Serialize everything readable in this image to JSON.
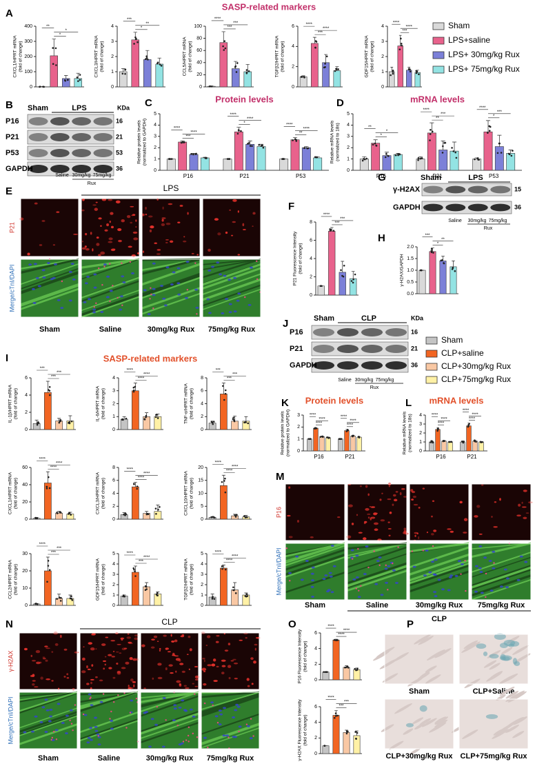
{
  "panel_labels": [
    "A",
    "B",
    "C",
    "D",
    "E",
    "F",
    "G",
    "H",
    "I",
    "J",
    "K",
    "L",
    "M",
    "N",
    "O",
    "P"
  ],
  "section_titles": [
    "SASP-related markers",
    "SASP-related markers"
  ],
  "legends": [
    {
      "items": [
        {
          "name": "Sham",
          "color": "#d9d9d9"
        },
        {
          "name": "LPS+saline",
          "color": "#e8628c"
        },
        {
          "name": "LPS+ 30mg/kg Rux",
          "color": "#7c80d8"
        },
        {
          "name": "LPS+ 75mg/kg Rux",
          "color": "#93e3e3"
        }
      ]
    },
    {
      "items": [
        {
          "name": "Sham",
          "color": "#c4c4c4"
        },
        {
          "name": "CLP+saline",
          "color": "#f26522"
        },
        {
          "name": "CLP+30mg/kg Rux",
          "color": "#f9c8a4"
        },
        {
          "name": "CLP+75mg/kg Rux",
          "color": "#fff1a6"
        }
      ]
    }
  ],
  "chart_data": [
    {
      "type": "bar",
      "ylabel": [
        "CXCL1/HPRT mRNA",
        "(fold of change)"
      ],
      "values": [
        1,
        205,
        55,
        55
      ],
      "errors": [
        1,
        110,
        20,
        35
      ],
      "colors": [
        "#d9d9d9",
        "#e8628c",
        "#7c80d8",
        "#93e3e3"
      ],
      "ylim": [
        0,
        400
      ],
      "yticks": [
        0,
        100,
        200,
        300,
        400
      ],
      "significance": [
        "**",
        "*",
        "*"
      ]
    },
    {
      "type": "bar",
      "ylabel": [
        "CXCL3/HPRT mRNA",
        "(fold of change)"
      ],
      "values": [
        1,
        3.1,
        1.8,
        1.5
      ],
      "errors": [
        0.2,
        0.5,
        0.6,
        0.4
      ],
      "colors": [
        "#d9d9d9",
        "#e8628c",
        "#7c80d8",
        "#93e3e3"
      ],
      "ylim": [
        0,
        4
      ],
      "yticks": [
        0,
        1,
        2,
        3,
        4
      ],
      "significance": [
        "***",
        "*",
        "**"
      ]
    },
    {
      "type": "bar",
      "ylabel": [
        "CCL5/HPRT mRNA",
        "(fold of change)"
      ],
      "values": [
        1,
        73,
        30,
        25
      ],
      "errors": [
        0.5,
        18,
        12,
        12
      ],
      "colors": [
        "#d9d9d9",
        "#e8628c",
        "#7c80d8",
        "#93e3e3"
      ],
      "ylim": [
        0,
        100
      ],
      "yticks": [
        0,
        20,
        40,
        60,
        80,
        100
      ],
      "significance": [
        "****",
        "***",
        "***"
      ]
    },
    {
      "type": "bar",
      "ylabel": [
        "TGFβ2/HPRT mRNA",
        "(fold of change)"
      ],
      "values": [
        1,
        4.3,
        2.4,
        1.6
      ],
      "errors": [
        0.1,
        0.6,
        0.8,
        0.4
      ],
      "colors": [
        "#d9d9d9",
        "#e8628c",
        "#7c80d8",
        "#93e3e3"
      ],
      "ylim": [
        0,
        6
      ],
      "yticks": [
        0,
        2,
        4,
        6
      ],
      "significance": [
        "****",
        "***",
        "****"
      ]
    },
    {
      "type": "bar",
      "ylabel": [
        "GDF15/HPRT mRNA",
        "(fold of change)"
      ],
      "values": [
        1,
        2.7,
        1.1,
        0.95
      ],
      "errors": [
        0.3,
        0.7,
        0.2,
        0.15
      ],
      "colors": [
        "#d9d9d9",
        "#e8628c",
        "#7c80d8",
        "#93e3e3"
      ],
      "ylim": [
        0,
        4
      ],
      "yticks": [
        0,
        1,
        2,
        3,
        4
      ],
      "significance": [
        "****",
        "***",
        "****"
      ]
    },
    {
      "type": "bar",
      "title": "Protein levels",
      "title_color": "#c2306a",
      "ylabel": [
        "Relative protein levels",
        "(normalized to GAPDH)"
      ],
      "categories": [
        "P16",
        "P21",
        "P53"
      ],
      "series": [
        {
          "color": "#d9d9d9",
          "values": [
            1,
            1,
            1
          ],
          "errors": [
            0,
            0,
            0
          ]
        },
        {
          "color": "#e8628c",
          "values": [
            2.5,
            3.4,
            2.7
          ],
          "errors": [
            0.1,
            0.4,
            0.2
          ]
        },
        {
          "color": "#7c80d8",
          "values": [
            1.4,
            2.3,
            2.0
          ],
          "errors": [
            0.1,
            0.3,
            0.1
          ]
        },
        {
          "color": "#93e3e3",
          "values": [
            1.1,
            2.1,
            1.1
          ],
          "errors": [
            0.05,
            0.2,
            0.1
          ]
        }
      ],
      "ylim": [
        0,
        5
      ],
      "yticks": [
        0,
        1,
        2,
        3,
        4,
        5
      ],
      "significance": [
        [
          "****",
          "***",
          "****"
        ],
        [
          "****",
          "*",
          "****"
        ],
        [
          "****",
          "**",
          "****"
        ]
      ]
    },
    {
      "type": "bar",
      "title": "mRNA levels",
      "title_color": "#c2306a",
      "ylabel": [
        "Relative mRNA levels",
        "(normalized to 18s)"
      ],
      "categories": [
        "P16",
        "P21",
        "P53"
      ],
      "series": [
        {
          "color": "#d9d9d9",
          "values": [
            1,
            1,
            1
          ],
          "errors": [
            0.2,
            0.2,
            0.1
          ]
        },
        {
          "color": "#e8628c",
          "values": [
            2.4,
            3.3,
            3.4
          ],
          "errors": [
            0.3,
            0.9,
            1.0
          ]
        },
        {
          "color": "#7c80d8",
          "values": [
            1.3,
            1.8,
            2.1
          ],
          "errors": [
            0.3,
            0.8,
            1.0
          ]
        },
        {
          "color": "#93e3e3",
          "values": [
            1.4,
            1.7,
            1.5
          ],
          "errors": [
            0.1,
            0.8,
            0.3
          ]
        }
      ],
      "ylim": [
        0,
        5
      ],
      "yticks": [
        0,
        1,
        2,
        3,
        4,
        5
      ],
      "significance": [
        [
          "**",
          "*",
          "*"
        ],
        [
          "****",
          "**",
          "***"
        ],
        [
          "****",
          "*",
          "***"
        ]
      ]
    },
    {
      "type": "bar",
      "ylabel": [
        "P21 Fluorescence Intensity",
        "(fold of change)"
      ],
      "values": [
        1,
        7,
        2.5,
        1.8
      ],
      "errors": [
        0,
        0.4,
        1.2,
        0.8
      ],
      "colors": [
        "#d9d9d9",
        "#e8628c",
        "#7c80d8",
        "#93e3e3"
      ],
      "ylim": [
        0,
        8
      ],
      "yticks": [
        0,
        2,
        4,
        6,
        8
      ],
      "significance": [
        "****",
        "***",
        "***"
      ]
    },
    {
      "type": "bar",
      "ylabel": [
        "γ-H2AX/GAPDH"
      ],
      "values": [
        1,
        1.8,
        1.4,
        1.15
      ],
      "errors": [
        0,
        0.15,
        0.2,
        0.25
      ],
      "colors": [
        "#d9d9d9",
        "#e8628c",
        "#7c80d8",
        "#93e3e3"
      ],
      "ylim": [
        0,
        2
      ],
      "yticks": [
        {
          "value": 0,
          "label": "0.0"
        },
        {
          "value": 0.5,
          "label": "0.5"
        },
        {
          "value": 1,
          "label": "1.0"
        },
        {
          "value": 1.5,
          "label": "1.5"
        },
        {
          "value": 2,
          "label": "2.0"
        }
      ],
      "significance": [
        "***",
        "*",
        "**"
      ]
    },
    {
      "type": "bar",
      "ylabel": [
        "IL-1β/HPRT mRNA",
        "(fold of change)"
      ],
      "values": [
        0.7,
        4.3,
        1.0,
        1.0
      ],
      "errors": [
        0.4,
        1.3,
        0.3,
        0.6
      ],
      "colors": [
        "#c4c4c4",
        "#f26522",
        "#f9c8a4",
        "#fff1a6"
      ],
      "ylim": [
        0,
        6
      ],
      "yticks": [
        0,
        2,
        4,
        6
      ],
      "significance": [
        "***",
        "***",
        "***"
      ]
    },
    {
      "type": "bar",
      "ylabel": [
        "IL-6/HPRT mRNA",
        "(fold of change)"
      ],
      "values": [
        0.8,
        3.0,
        1.0,
        1.0
      ],
      "errors": [
        0.2,
        0.6,
        0.3,
        0.2
      ],
      "colors": [
        "#c4c4c4",
        "#f26522",
        "#f9c8a4",
        "#fff1a6"
      ],
      "ylim": [
        0,
        4
      ],
      "yticks": [
        0,
        1,
        2,
        3,
        4
      ],
      "significance": [
        "****",
        "****",
        "****"
      ]
    },
    {
      "type": "bar",
      "ylabel": [
        "TNF-α/HPRT mRNA",
        "(fold of change)"
      ],
      "values": [
        1,
        5.5,
        1.3,
        1.3
      ],
      "errors": [
        0.3,
        1.7,
        0.8,
        0.7
      ],
      "colors": [
        "#c4c4c4",
        "#f26522",
        "#f9c8a4",
        "#fff1a6"
      ],
      "ylim": [
        0,
        8
      ],
      "yticks": [
        0,
        2,
        4,
        6,
        8
      ],
      "significance": [
        "***",
        "***",
        "***"
      ]
    },
    {
      "type": "bar",
      "ylabel": [
        "CXCL1/HPRT mRNA",
        "(fold of change)"
      ],
      "values": [
        1,
        42,
        7,
        6
      ],
      "errors": [
        1,
        13,
        2,
        2
      ],
      "colors": [
        "#c4c4c4",
        "#f26522",
        "#f9c8a4",
        "#fff1a6"
      ],
      "ylim": [
        0,
        60
      ],
      "yticks": [
        0,
        20,
        40,
        60
      ],
      "significance": [
        "****",
        "****",
        "****"
      ]
    },
    {
      "type": "bar",
      "ylabel": [
        "CXCL3/HPRT mRNA",
        "(fold of change)"
      ],
      "values": [
        0.7,
        5.0,
        0.9,
        1.2
      ],
      "errors": [
        0.3,
        0.7,
        0.3,
        1.0
      ],
      "colors": [
        "#c4c4c4",
        "#f26522",
        "#f9c8a4",
        "#fff1a6"
      ],
      "ylim": [
        0,
        8
      ],
      "yticks": [
        0,
        2,
        4,
        6,
        8
      ],
      "significance": [
        "****",
        "****",
        "****"
      ]
    },
    {
      "type": "bar",
      "ylabel": [
        "CXCL10/HPRT mRNA",
        "(fold of change)"
      ],
      "values": [
        0.7,
        13,
        1.3,
        0.9
      ],
      "errors": [
        0.3,
        4,
        0.6,
        0.6
      ],
      "colors": [
        "#c4c4c4",
        "#f26522",
        "#f9c8a4",
        "#fff1a6"
      ],
      "ylim": [
        0,
        20
      ],
      "yticks": [
        0,
        5,
        10,
        15,
        20
      ],
      "significance": [
        "****",
        "****",
        "****"
      ]
    },
    {
      "type": "bar",
      "ylabel": [
        "CCL2/HPRT mRNA",
        "(fold of change)"
      ],
      "values": [
        0.8,
        20,
        4,
        4
      ],
      "errors": [
        0.3,
        8,
        2.5,
        2
      ],
      "colors": [
        "#c4c4c4",
        "#f26522",
        "#f9c8a4",
        "#fff1a6"
      ],
      "ylim": [
        0,
        30
      ],
      "yticks": [
        0,
        10,
        20,
        30
      ],
      "significance": [
        "****",
        "***",
        "***"
      ]
    },
    {
      "type": "bar",
      "ylabel": [
        "GDF15/HPRT mRNA",
        "(fold of change)"
      ],
      "values": [
        0.9,
        3.2,
        1.8,
        1.1
      ],
      "errors": [
        0.1,
        0.6,
        0.4,
        0.2
      ],
      "colors": [
        "#c4c4c4",
        "#f26522",
        "#f9c8a4",
        "#fff1a6"
      ],
      "ylim": [
        0,
        5
      ],
      "yticks": [
        0,
        1,
        2,
        3,
        4,
        5
      ],
      "significance": [
        "****",
        "***",
        "****"
      ]
    },
    {
      "type": "bar",
      "ylabel": [
        "TGFβ2/HPRT mRNA",
        "(fold of change)"
      ],
      "values": [
        0.8,
        3.6,
        1.5,
        1.0
      ],
      "errors": [
        0.3,
        0.3,
        0.7,
        0.2
      ],
      "colors": [
        "#c4c4c4",
        "#f26522",
        "#f9c8a4",
        "#fff1a6"
      ],
      "ylim": [
        0,
        5
      ],
      "yticks": [
        0,
        1,
        2,
        3,
        4,
        5
      ],
      "significance": [
        "****",
        "****",
        "****"
      ]
    },
    {
      "type": "bar",
      "title": "Protein levels",
      "title_color": "#e2502a",
      "ylabel": [
        "Relative protein levels",
        "(normalized to GAPDH)"
      ],
      "categories": [
        "P16",
        "P21"
      ],
      "series": [
        {
          "color": "#c4c4c4",
          "values": [
            1,
            1
          ],
          "errors": [
            0,
            0
          ]
        },
        {
          "color": "#f26522",
          "values": [
            1.9,
            1.7
          ],
          "errors": [
            0.05,
            0.1
          ]
        },
        {
          "color": "#f9c8a4",
          "values": [
            1.2,
            1.25
          ],
          "errors": [
            0.05,
            0.05
          ]
        },
        {
          "color": "#fff1a6",
          "values": [
            1.1,
            1.15
          ],
          "errors": [
            0.05,
            0.05
          ]
        }
      ],
      "ylim": [
        0,
        3
      ],
      "yticks": [
        0,
        1,
        2,
        3
      ],
      "significance": [
        [
          "****",
          "****",
          "****"
        ],
        [
          "****",
          "****",
          "****"
        ]
      ]
    },
    {
      "type": "bar",
      "title": "mRNA levels",
      "title_color": "#e2502a",
      "ylabel": [
        "Relative mRNA levels",
        "(normalized to 18s)"
      ],
      "categories": [
        "P16",
        "P21"
      ],
      "series": [
        {
          "color": "#c4c4c4",
          "values": [
            1,
            1
          ],
          "errors": [
            0.15,
            0.1
          ]
        },
        {
          "color": "#f26522",
          "values": [
            2.4,
            2.8
          ],
          "errors": [
            0.2,
            0.3
          ]
        },
        {
          "color": "#f9c8a4",
          "values": [
            1.1,
            1.1
          ],
          "errors": [
            0.05,
            0.1
          ]
        },
        {
          "color": "#fff1a6",
          "values": [
            1.0,
            1.0
          ],
          "errors": [
            0.05,
            0.05
          ]
        }
      ],
      "ylim": [
        0,
        4
      ],
      "yticks": [
        0,
        1,
        2,
        3,
        4
      ],
      "significance": [
        [
          "****",
          "****",
          "****"
        ],
        [
          "****",
          "****",
          "****"
        ]
      ]
    },
    {
      "type": "bar",
      "ylabel": [
        "P16 Fluorescence Intensity",
        "(fold of change)"
      ],
      "values": [
        1,
        5.1,
        1.6,
        1.3
      ],
      "errors": [
        0,
        0.1,
        0.2,
        0.2
      ],
      "colors": [
        "#c4c4c4",
        "#f26522",
        "#f9c8a4",
        "#fff1a6"
      ],
      "ylim": [
        0,
        6
      ],
      "yticks": [
        0,
        2,
        4,
        6
      ],
      "significance": [
        "****",
        "****",
        "****"
      ]
    },
    {
      "type": "bar",
      "ylabel": [
        "γ-H2AX Fluorescence Intensity",
        "(fold of change)"
      ],
      "values": [
        1,
        4.9,
        2.7,
        2.3
      ],
      "errors": [
        0,
        0.6,
        0.3,
        0.6
      ],
      "colors": [
        "#c4c4c4",
        "#f26522",
        "#f9c8a4",
        "#fff1a6"
      ],
      "ylim": [
        0,
        6
      ],
      "yticks": [
        0,
        2,
        4,
        6
      ],
      "significance": [
        "****",
        "***",
        "***"
      ]
    }
  ],
  "blots": [
    {
      "top_labels": [
        "Sham",
        "LPS"
      ],
      "unit": "KDa",
      "rows": [
        {
          "name": "P16",
          "kda": "16"
        },
        {
          "name": "P21",
          "kda": "21"
        },
        {
          "name": "P53",
          "kda": "53"
        },
        {
          "name": "GAPDH",
          "kda": "36"
        }
      ],
      "bottom_labels": [
        "Saline",
        "30mg/kg",
        "75mg/kg"
      ],
      "bottom_group": "Rux"
    },
    {
      "top_labels": [
        "Sham",
        "LPS"
      ],
      "rows": [
        {
          "name": "γ-H2AX",
          "kda": "15"
        },
        {
          "name": "GAPDH",
          "kda": "36"
        }
      ],
      "bottom_labels": [
        "Saline",
        "30mg/kg",
        "75mg/kg"
      ],
      "bottom_group": "Rux"
    },
    {
      "top_labels": [
        "Sham",
        "CLP"
      ],
      "unit": "KDa",
      "rows": [
        {
          "name": "P16",
          "kda": "16"
        },
        {
          "name": "P21",
          "kda": "21"
        },
        {
          "name": "GAPDH",
          "kda": "36"
        }
      ],
      "bottom_labels": [
        "Saline",
        "30mg/kg",
        "75mg/kg"
      ],
      "bottom_group": "Rux"
    }
  ],
  "micrographs": [
    {
      "header": "LPS",
      "row_labels": [
        "P21",
        "Merge/cTnI/DAPI"
      ],
      "columns": [
        "Sham",
        "Saline",
        "30mg/kg Rux",
        "75mg/kg Rux"
      ]
    },
    {
      "footer": "CLP",
      "row_labels": [
        "P16",
        "Merge/cTnI/DAPI"
      ],
      "columns": [
        "Sham",
        "Saline",
        "30mg/kg Rux",
        "75mg/kg Rux"
      ]
    },
    {
      "header": "CLP",
      "row_labels": [
        "γ-H2AX",
        "Merge/cTnI/DAPI"
      ],
      "columns": [
        "Sham",
        "Saline",
        "30mg/kg Rux",
        "75mg/kg Rux"
      ]
    },
    {
      "labels": [
        "Sham",
        "CLP+Saline",
        "CLP+30mg/kg Rux",
        "CLP+75mg/kg Rux"
      ]
    }
  ]
}
